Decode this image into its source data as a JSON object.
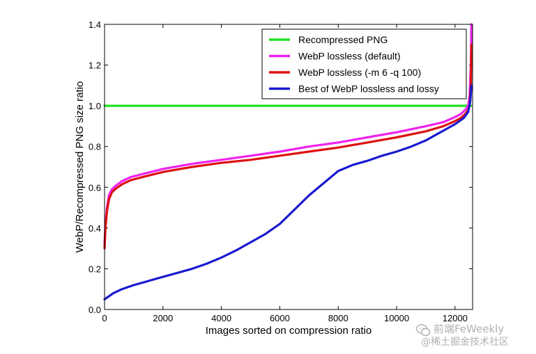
{
  "chart_data": {
    "type": "line",
    "title": "",
    "xlabel": "Images sorted on compression ratio",
    "ylabel": "WebP/Recompressed PNG size ratio",
    "xlim": [
      0,
      12600
    ],
    "ylim": [
      0.0,
      1.4
    ],
    "xticks": [
      0,
      2000,
      4000,
      6000,
      8000,
      10000,
      12000
    ],
    "xtick_labels": [
      "0",
      "2000",
      "4000",
      "6000",
      "8000",
      "10000",
      "12000"
    ],
    "yticks": [
      0.0,
      0.2,
      0.4,
      0.6,
      0.8,
      1.0,
      1.2,
      1.4
    ],
    "ytick_labels": [
      "0.0",
      "0.2",
      "0.4",
      "0.6",
      "0.8",
      "1.0",
      "1.2",
      "1.4"
    ],
    "grid": false,
    "legend_position": "top-right",
    "series": [
      {
        "name": "Recompressed PNG",
        "color": "#22e022",
        "x": [
          0,
          12550
        ],
        "y": [
          1.0,
          1.0
        ]
      },
      {
        "name": "WebP lossless (default)",
        "color": "#ee22ee",
        "x": [
          0,
          30,
          80,
          150,
          250,
          400,
          600,
          900,
          1300,
          2000,
          3000,
          4000,
          5000,
          6000,
          7000,
          8000,
          9000,
          10000,
          11000,
          11600,
          12000,
          12200,
          12350,
          12450,
          12500,
          12540,
          12560
        ],
        "y": [
          0.32,
          0.42,
          0.5,
          0.56,
          0.59,
          0.61,
          0.63,
          0.65,
          0.665,
          0.69,
          0.715,
          0.735,
          0.755,
          0.775,
          0.8,
          0.82,
          0.845,
          0.87,
          0.9,
          0.92,
          0.945,
          0.96,
          0.98,
          1.0,
          1.05,
          1.2,
          1.4
        ]
      },
      {
        "name": "WebP lossless (-m 6 -q 100)",
        "color": "#dd1111",
        "x": [
          0,
          30,
          80,
          150,
          250,
          400,
          600,
          900,
          1300,
          2000,
          3000,
          4000,
          5000,
          6000,
          7000,
          8000,
          9000,
          10000,
          11000,
          11600,
          12000,
          12200,
          12350,
          12450,
          12500,
          12540,
          12560
        ],
        "y": [
          0.3,
          0.4,
          0.48,
          0.54,
          0.575,
          0.595,
          0.615,
          0.635,
          0.65,
          0.675,
          0.7,
          0.72,
          0.735,
          0.755,
          0.775,
          0.795,
          0.82,
          0.845,
          0.875,
          0.9,
          0.925,
          0.94,
          0.96,
          0.98,
          1.0,
          1.1,
          1.3
        ]
      },
      {
        "name": "Best of WebP lossless and lossy",
        "color": "#1a1ad0",
        "x": [
          0,
          100,
          300,
          600,
          1000,
          1500,
          2000,
          2500,
          3000,
          3500,
          4000,
          4500,
          5000,
          5500,
          6000,
          6500,
          7000,
          7500,
          8000,
          8500,
          9000,
          9500,
          10000,
          10500,
          11000,
          11500,
          12000,
          12300,
          12450,
          12520,
          12560
        ],
        "y": [
          0.05,
          0.06,
          0.08,
          0.1,
          0.12,
          0.14,
          0.16,
          0.18,
          0.2,
          0.225,
          0.255,
          0.29,
          0.33,
          0.37,
          0.42,
          0.49,
          0.56,
          0.62,
          0.68,
          0.71,
          0.73,
          0.755,
          0.775,
          0.8,
          0.83,
          0.87,
          0.91,
          0.94,
          0.97,
          1.02,
          1.1
        ]
      }
    ]
  },
  "watermark": {
    "line1": "前端FeWeekly",
    "line2": "@稀土掘金技术社区"
  }
}
